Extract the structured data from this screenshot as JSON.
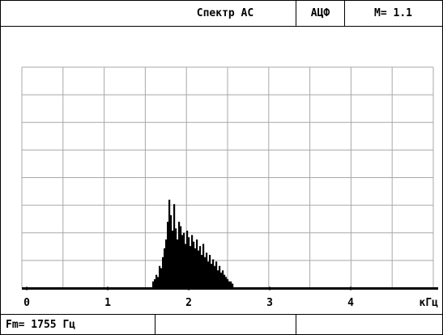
{
  "header": {
    "title": "Спектр АС",
    "mode_label": "АЦФ",
    "magnification": "M= 1.1"
  },
  "footer": {
    "frequency_readout": "Fm= 1755 Гц"
  },
  "chart_data": {
    "type": "bar",
    "title": "Спектр АС",
    "xlabel": "кГц",
    "ylabel": "",
    "xlim": [
      0,
      5
    ],
    "ylim": [
      0,
      1
    ],
    "grid": true,
    "x_ticks": [
      "0",
      "1",
      "2",
      "3",
      "4"
    ],
    "x_unit": "кГц",
    "x": [
      1.55,
      1.57,
      1.59,
      1.61,
      1.63,
      1.65,
      1.67,
      1.69,
      1.71,
      1.73,
      1.75,
      1.77,
      1.79,
      1.81,
      1.83,
      1.85,
      1.87,
      1.89,
      1.91,
      1.93,
      1.95,
      1.97,
      1.99,
      2.01,
      2.03,
      2.05,
      2.07,
      2.09,
      2.11,
      2.13,
      2.15,
      2.17,
      2.19,
      2.21,
      2.23,
      2.25,
      2.27,
      2.29,
      2.31,
      2.33,
      2.35,
      2.37,
      2.39,
      2.41,
      2.43,
      2.45,
      2.47,
      2.49,
      2.51,
      2.53
    ],
    "values": [
      0.03,
      0.04,
      0.06,
      0.05,
      0.1,
      0.09,
      0.14,
      0.18,
      0.22,
      0.3,
      0.4,
      0.33,
      0.26,
      0.38,
      0.27,
      0.22,
      0.3,
      0.28,
      0.24,
      0.25,
      0.2,
      0.26,
      0.23,
      0.19,
      0.24,
      0.21,
      0.18,
      0.22,
      0.17,
      0.19,
      0.15,
      0.2,
      0.14,
      0.16,
      0.12,
      0.15,
      0.11,
      0.13,
      0.1,
      0.12,
      0.08,
      0.1,
      0.07,
      0.08,
      0.06,
      0.05,
      0.04,
      0.03,
      0.03,
      0.02
    ]
  }
}
